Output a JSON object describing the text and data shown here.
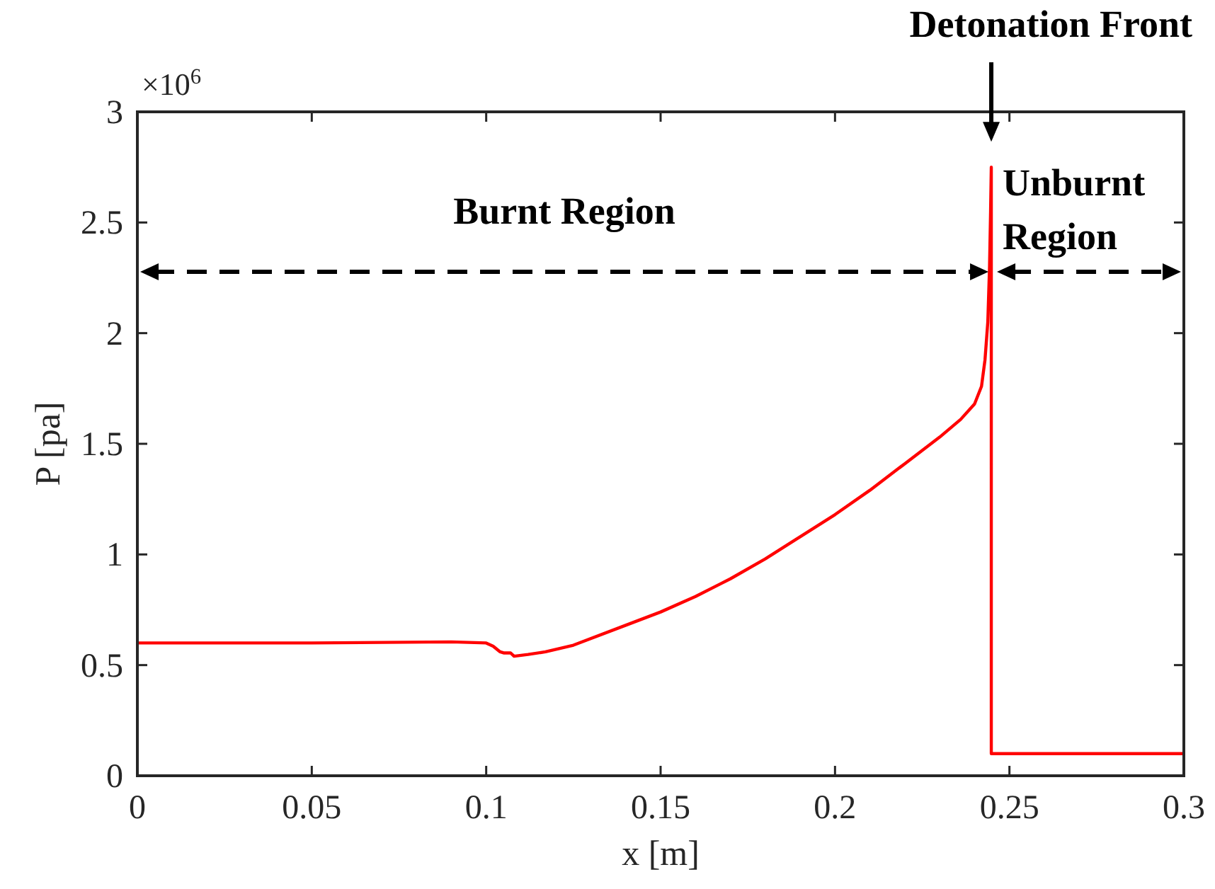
{
  "chart_data": {
    "type": "line",
    "xlabel": "x [m]",
    "ylabel": "P [pa]",
    "xlim": [
      0,
      0.3
    ],
    "xticks": [
      0,
      0.05,
      0.1,
      0.15,
      0.2,
      0.25,
      0.3
    ],
    "ylim": [
      0,
      3
    ],
    "yticks": [
      0,
      0.5,
      1,
      1.5,
      2,
      2.5,
      3
    ],
    "grid": false,
    "marker": "none",
    "line_style": "solid",
    "series": [
      {
        "color": "#ff0000",
        "x": [
          0,
          0.05,
          0.09,
          0.1,
          0.102,
          0.104,
          0.105,
          0.107,
          0.108,
          0.112,
          0.117,
          0.125,
          0.14,
          0.15,
          0.16,
          0.17,
          0.18,
          0.19,
          0.2,
          0.21,
          0.22,
          0.23,
          0.236,
          0.24,
          0.242,
          0.243,
          0.2438,
          0.2443,
          0.2446,
          0.2448,
          0.2448,
          0.26,
          0.28,
          0.3
        ],
        "values": [
          0.6,
          0.6,
          0.605,
          0.6,
          0.585,
          0.56,
          0.555,
          0.555,
          0.54,
          0.548,
          0.56,
          0.59,
          0.68,
          0.74,
          0.81,
          0.89,
          0.98,
          1.08,
          1.18,
          1.29,
          1.41,
          1.53,
          1.61,
          1.68,
          1.76,
          1.88,
          2.05,
          2.3,
          2.55,
          2.75,
          0.1,
          0.1,
          0.1,
          0.1
        ]
      }
    ],
    "annotations": [
      "×10$^{6}$",
      "Burnt Region",
      "Unburnt Region",
      "Detonation Front"
    ]
  }
}
